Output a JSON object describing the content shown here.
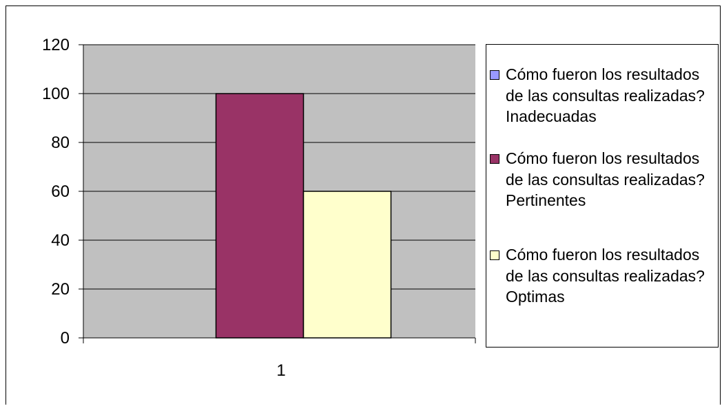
{
  "chart_data": {
    "type": "bar",
    "categories": [
      "1"
    ],
    "series": [
      {
        "name": "Cómo fueron los resultados de las consultas realizadas? Inadecuadas",
        "values": [
          0
        ],
        "color": "#9999ff"
      },
      {
        "name": "Cómo fueron los resultados de las consultas realizadas? Pertinentes",
        "values": [
          100
        ],
        "color": "#993366"
      },
      {
        "name": "Cómo fueron los resultados de las consultas realizadas? Optimas",
        "values": [
          60
        ],
        "color": "#ffffcc"
      }
    ],
    "yticks": [
      "0",
      "20",
      "40",
      "60",
      "80",
      "100",
      "120"
    ],
    "ylim": [
      0,
      120
    ],
    "grid": true,
    "plot_background": "#c0c0c0",
    "legend_position": "right"
  }
}
